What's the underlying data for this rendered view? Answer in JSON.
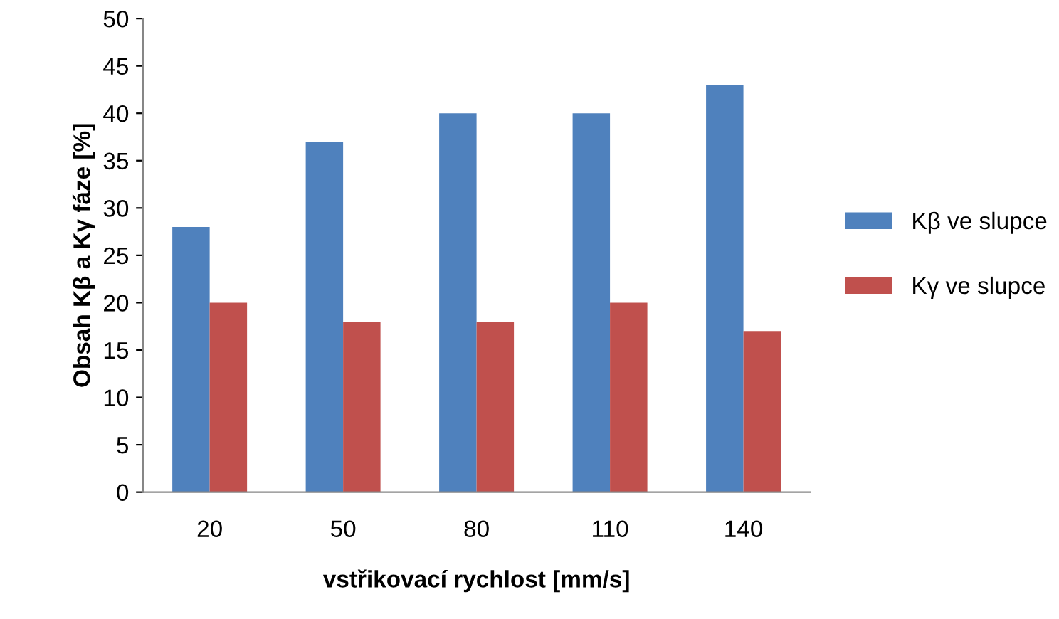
{
  "chart_data": {
    "type": "bar",
    "xlabel": "vstřikovací rychlost [mm/s]",
    "ylabel": "Obsah Kβ a Kγ fáze [%]",
    "categories": [
      "20",
      "50",
      "80",
      "110",
      "140"
    ],
    "series": [
      {
        "name": "Kβ ve slupce",
        "color": "#4f81bd",
        "values": [
          28,
          37,
          40,
          40,
          43
        ]
      },
      {
        "name": "Kγ ve slupce",
        "color": "#c0504d",
        "values": [
          20,
          18,
          18,
          20,
          17
        ]
      }
    ],
    "ylim": [
      0,
      50
    ],
    "yticks": [
      0,
      5,
      10,
      15,
      20,
      25,
      30,
      35,
      40,
      45,
      50
    ],
    "grid": false,
    "legend": "right"
  }
}
